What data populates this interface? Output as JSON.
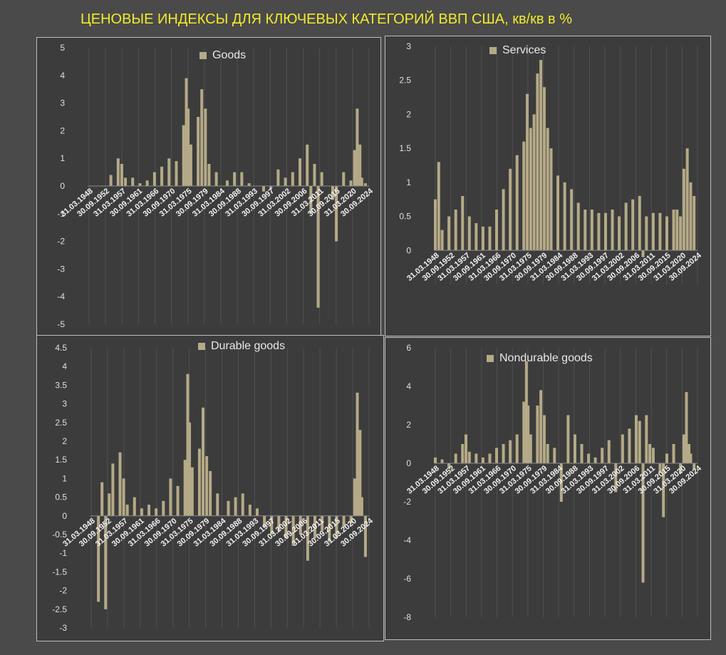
{
  "title": "ЦЕНОВЫЕ ИНДЕКСЫ ДЛЯ КЛЮЧЕВЫХ КАТЕГОРИЙ ВВП США, кв/кв в %",
  "colors": {
    "bar": "#b5aa87",
    "panel_bg": "#3c3c3c",
    "page_bg": "#4a4a4a",
    "title": "#f2ea2c",
    "text": "#e8e8e8"
  },
  "chart_data": [
    {
      "type": "bar",
      "series": [
        {
          "name": "Goods"
        }
      ],
      "ylim": [
        -5,
        5
      ],
      "yticks": [
        5,
        4,
        3,
        2,
        1,
        0,
        -1,
        -2,
        -3,
        -4,
        -5
      ],
      "tick_labels": [
        "31.03.1948",
        "30.09.1952",
        "31.03.1957",
        "30.09.1961",
        "31.03.1966",
        "30.09.1970",
        "31.03.1975",
        "30.09.1979",
        "31.03.1984",
        "30.09.1988",
        "31.03.1993",
        "30.09.1997",
        "31.03.2002",
        "30.09.2006",
        "31.03.2011",
        "30.09.2015",
        "31.03.2020",
        "30.09.2024"
      ],
      "x": [
        1948,
        1950,
        1952,
        1954,
        1956,
        1957,
        1958,
        1960,
        1962,
        1964,
        1966,
        1968,
        1970,
        1972,
        1974,
        1974.75,
        1975.25,
        1976,
        1978,
        1979,
        1980,
        1981,
        1983,
        1986,
        1988,
        1990,
        1992,
        1994,
        1996,
        1998,
        2000,
        2002,
        2004,
        2006,
        2008,
        2009,
        2010,
        2011,
        2012,
        2014,
        2015,
        2016,
        2018,
        2020,
        2021,
        2021.75,
        2022.5,
        2023,
        2024
      ],
      "values": [
        0,
        0,
        0,
        0.4,
        1.0,
        0.8,
        0.3,
        0.3,
        0.1,
        0.2,
        0.5,
        0.7,
        1.0,
        0.9,
        2.2,
        3.9,
        2.8,
        1.5,
        2.5,
        3.5,
        2.8,
        0.8,
        0.5,
        0.2,
        0.5,
        0.5,
        0.1,
        0.0,
        -0.2,
        -0.1,
        0.6,
        0.3,
        0.5,
        1.0,
        1.5,
        -1.0,
        0.8,
        -4.4,
        0.5,
        0.0,
        -0.5,
        -2.0,
        0.5,
        0.2,
        1.3,
        2.8,
        1.5,
        0.3,
        0.1
      ]
    },
    {
      "type": "bar",
      "series": [
        {
          "name": "Services"
        }
      ],
      "ylim": [
        -0.5,
        3
      ],
      "yticks": [
        3,
        2.5,
        2,
        1.5,
        1,
        0.5,
        0
      ],
      "tick_labels": [
        "31.03.1948",
        "30.09.1952",
        "31.03.1957",
        "30.09.1961",
        "31.03.1966",
        "30.09.1970",
        "31.03.1975",
        "30.09.1979",
        "31.03.1984",
        "30.09.1988",
        "31.03.1993",
        "30.09.1997",
        "31.03.2002",
        "30.09.2006",
        "31.03.2011",
        "30.09.2015",
        "31.03.2020",
        "30.09.2024"
      ],
      "x": [
        1948,
        1949,
        1950,
        1952,
        1954,
        1956,
        1958,
        1960,
        1962,
        1964,
        1966,
        1968,
        1970,
        1972,
        1974,
        1975,
        1976,
        1977,
        1978,
        1979,
        1980,
        1981,
        1982,
        1984,
        1986,
        1988,
        1990,
        1992,
        1994,
        1996,
        1998,
        2000,
        2002,
        2004,
        2006,
        2008,
        2009,
        2010,
        2012,
        2014,
        2016,
        2018,
        2019,
        2020,
        2021,
        2022,
        2023,
        2024
      ],
      "values": [
        0.75,
        1.3,
        0.3,
        0.5,
        0.6,
        0.8,
        0.5,
        0.4,
        0.35,
        0.35,
        0.6,
        0.9,
        1.2,
        1.4,
        1.6,
        2.3,
        1.8,
        2.0,
        2.6,
        2.8,
        2.4,
        1.8,
        1.5,
        1.1,
        1.0,
        0.9,
        0.7,
        0.6,
        0.6,
        0.55,
        0.55,
        0.6,
        0.5,
        0.7,
        0.75,
        0.8,
        -0.1,
        0.5,
        0.55,
        0.55,
        0.5,
        0.6,
        0.6,
        0.5,
        1.2,
        1.5,
        1.0,
        0.8
      ]
    },
    {
      "type": "bar",
      "series": [
        {
          "name": "Durable goods"
        }
      ],
      "ylim": [
        -3,
        4.5
      ],
      "yticks": [
        4.5,
        4,
        3.5,
        3,
        2.5,
        2,
        1.5,
        1,
        0.5,
        0,
        -0.5,
        -1,
        -1.5,
        -2,
        -2.5,
        -3
      ],
      "tick_labels": [
        "31.03.1948",
        "30.09.1952",
        "31.03.1957",
        "30.09.1961",
        "31.03.1966",
        "30.09.1970",
        "31.03.1975",
        "30.09.1979",
        "31.03.1984",
        "30.09.1988",
        "31.03.1993",
        "30.09.1997",
        "31.03.2002",
        "30.09.2006",
        "31.03.2011",
        "30.09.2015",
        "31.03.2020",
        "30.09.2024"
      ],
      "x": [
        1948,
        1950,
        1951,
        1952,
        1953,
        1954,
        1956,
        1957,
        1958,
        1960,
        1962,
        1964,
        1966,
        1968,
        1970,
        1972,
        1974,
        1974.75,
        1975.25,
        1976,
        1978,
        1979,
        1980,
        1981,
        1983,
        1986,
        1988,
        1990,
        1992,
        1994,
        1996,
        1998,
        2000,
        2002,
        2004,
        2006,
        2008,
        2010,
        2012,
        2014,
        2016,
        2018,
        2020,
        2021,
        2021.75,
        2022.5,
        2023,
        2024
      ],
      "values": [
        0,
        -2.3,
        0.9,
        -2.5,
        0.6,
        1.4,
        1.7,
        1.0,
        0.3,
        0.5,
        0.2,
        0.3,
        0.2,
        0.4,
        1.0,
        0.8,
        1.5,
        3.8,
        2.5,
        1.3,
        1.8,
        2.9,
        1.6,
        1.2,
        0.6,
        0.4,
        0.5,
        0.6,
        0.3,
        0.2,
        -0.3,
        -0.5,
        -0.4,
        -0.6,
        -0.8,
        -0.5,
        -1.2,
        -0.6,
        -0.4,
        -0.7,
        -0.6,
        -0.3,
        -0.2,
        1.0,
        3.3,
        2.3,
        0.5,
        -1.1
      ]
    },
    {
      "type": "bar",
      "series": [
        {
          "name": "Nondurable goods"
        }
      ],
      "ylim": [
        -8,
        6
      ],
      "yticks": [
        6,
        4,
        2,
        0,
        -2,
        -4,
        -6,
        -8
      ],
      "tick_labels": [
        "31.03.1948",
        "30.09.1952",
        "31.03.1957",
        "30.09.1961",
        "31.03.1966",
        "30.09.1970",
        "31.03.1975",
        "30.09.1979",
        "31.03.1984",
        "30.09.1988",
        "31.03.1993",
        "30.09.1997",
        "31.03.2002",
        "30.09.2006",
        "31.03.2011",
        "30.09.2015",
        "31.03.2020",
        "30.09.2024"
      ],
      "x": [
        1948,
        1950,
        1952,
        1954,
        1956,
        1957,
        1958,
        1960,
        1962,
        1964,
        1966,
        1968,
        1970,
        1972,
        1974,
        1974.75,
        1975.25,
        1976,
        1978,
        1979,
        1980,
        1981,
        1983,
        1985,
        1987,
        1989,
        1991,
        1993,
        1995,
        1997,
        1999,
        2001,
        2003,
        2005,
        2007,
        2008,
        2009,
        2010,
        2011,
        2012,
        2014,
        2015,
        2016,
        2018,
        2020,
        2021,
        2021.75,
        2022.5,
        2023,
        2024
      ],
      "values": [
        0.3,
        0.2,
        -0.3,
        0.5,
        1.0,
        1.5,
        0.6,
        0.5,
        0.3,
        0.5,
        0.8,
        1.0,
        1.2,
        1.5,
        3.2,
        5.3,
        3.0,
        1.5,
        3.0,
        3.8,
        2.5,
        1.0,
        0.8,
        -2.0,
        2.5,
        1.5,
        1.0,
        0.5,
        0.3,
        0.8,
        1.2,
        -1.5,
        1.5,
        1.8,
        2.5,
        2.2,
        -6.2,
        2.5,
        1.0,
        0.8,
        -0.5,
        -2.8,
        0.5,
        1.0,
        -0.5,
        1.5,
        3.7,
        1.0,
        0.5,
        -0.3
      ]
    }
  ]
}
